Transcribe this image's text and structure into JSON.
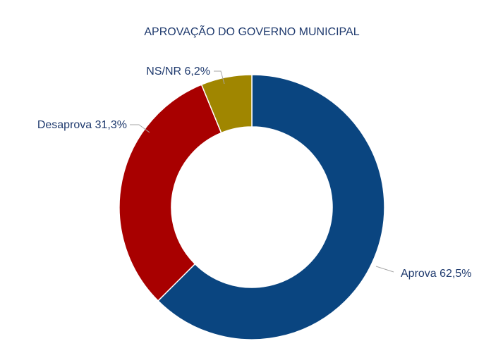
{
  "chart_data": {
    "type": "pie",
    "title": "APROVAÇÃO DO GOVERNO MUNICIPAL",
    "donut": true,
    "slices": [
      {
        "name": "Aprova",
        "value": 62.5,
        "label": "Aprova 62,5%",
        "color": "#0a4580"
      },
      {
        "name": "Desaprova",
        "value": 31.3,
        "label": "Desaprova 31,3%",
        "color": "#a80000"
      },
      {
        "name": "NS/NR",
        "value": 6.2,
        "label": "NS/NR 6,2%",
        "color": "#a08600"
      }
    ],
    "legend": "none"
  }
}
